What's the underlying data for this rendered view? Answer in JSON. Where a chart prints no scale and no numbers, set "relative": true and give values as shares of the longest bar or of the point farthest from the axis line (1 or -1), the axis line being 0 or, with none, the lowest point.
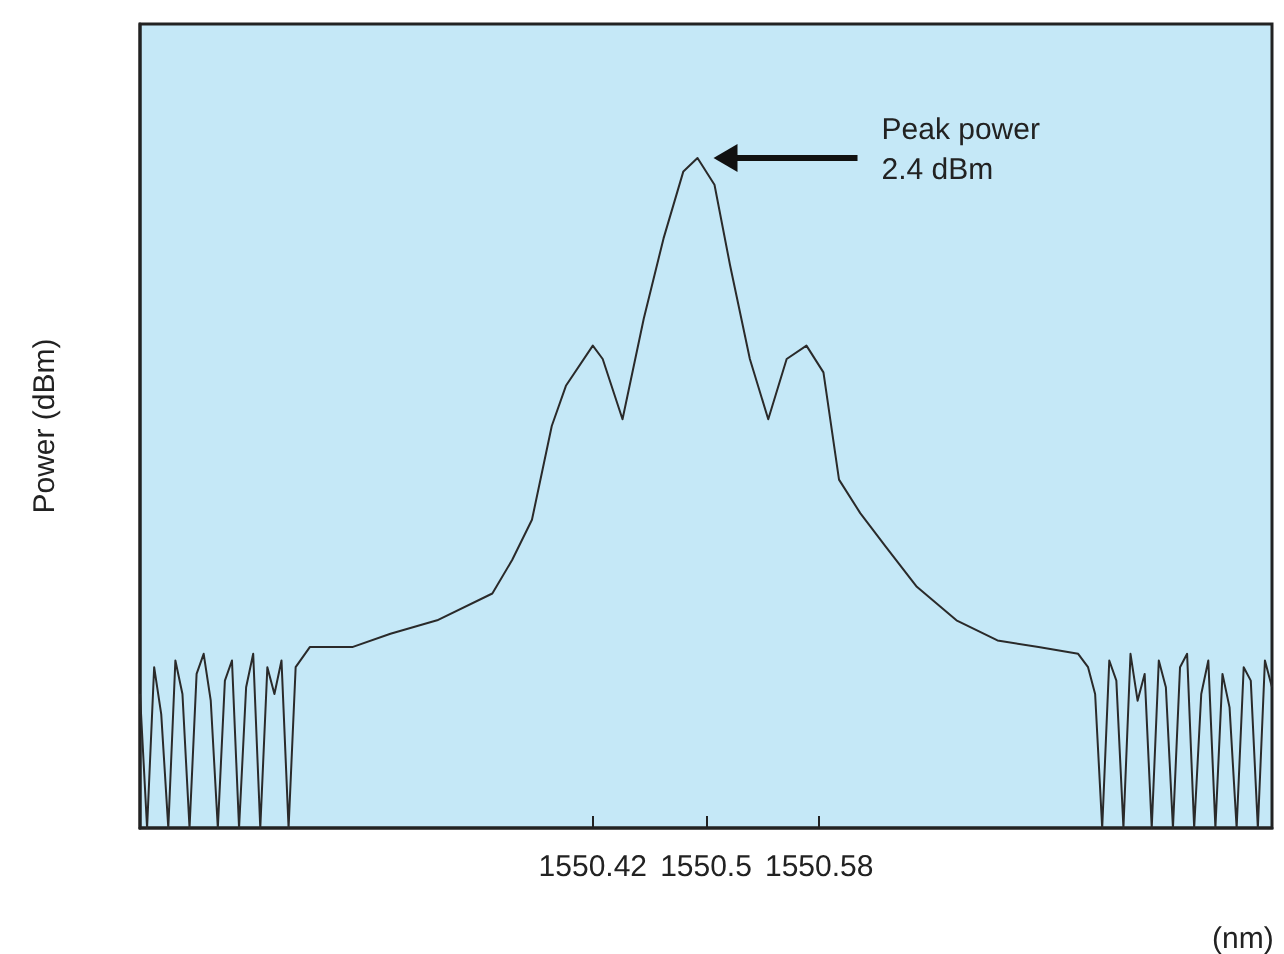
{
  "chart_data": {
    "type": "line",
    "relative": true,
    "xlabel": "(nm)",
    "ylabel": "Power (dBm)",
    "xlim": [
      1550.1,
      1550.9
    ],
    "xticks": [
      1550.42,
      1550.5,
      1550.58
    ],
    "grid": false,
    "marker": "none",
    "line_style": "solid",
    "annotations": [
      "Peak power\n2.4 dBm"
    ],
    "series": [
      {
        "color": "#2a2a2a",
        "x": [
          1550.1,
          1550.105,
          1550.11,
          1550.115,
          1550.12,
          1550.125,
          1550.13,
          1550.135,
          1550.14,
          1550.145,
          1550.15,
          1550.155,
          1550.16,
          1550.165,
          1550.17,
          1550.175,
          1550.18,
          1550.185,
          1550.19,
          1550.195,
          1550.2,
          1550.205,
          1550.21,
          1550.22,
          1550.25,
          1550.277,
          1550.31,
          1550.349,
          1550.363,
          1550.377,
          1550.391,
          1550.401,
          1550.42,
          1550.427,
          1550.441,
          1550.456,
          1550.47,
          1550.484,
          1550.494,
          1550.506,
          1550.517,
          1550.531,
          1550.544,
          1550.557,
          1550.571,
          1550.583,
          1550.594,
          1550.609,
          1550.627,
          1550.649,
          1550.677,
          1550.706,
          1550.735,
          1550.763,
          1550.77,
          1550.775,
          1550.78,
          1550.785,
          1550.79,
          1550.795,
          1550.8,
          1550.805,
          1550.81,
          1550.815,
          1550.82,
          1550.825,
          1550.83,
          1550.835,
          1550.84,
          1550.845,
          1550.85,
          1550.855,
          1550.86,
          1550.865,
          1550.87,
          1550.875,
          1550.88,
          1550.885,
          1550.89,
          1550.895,
          1550.9
        ],
        "values": [
          0.2,
          0.0,
          0.24,
          0.17,
          0.0,
          0.25,
          0.2,
          0.0,
          0.23,
          0.26,
          0.19,
          0.0,
          0.22,
          0.25,
          0.0,
          0.21,
          0.26,
          0.0,
          0.24,
          0.2,
          0.25,
          0.0,
          0.24,
          0.27,
          0.27,
          0.29,
          0.31,
          0.35,
          0.4,
          0.46,
          0.6,
          0.66,
          0.72,
          0.7,
          0.61,
          0.76,
          0.88,
          0.98,
          1,
          0.96,
          0.84,
          0.7,
          0.61,
          0.7,
          0.72,
          0.68,
          0.52,
          0.47,
          0.42,
          0.36,
          0.31,
          0.28,
          0.27,
          0.26,
          0.24,
          0.2,
          0.0,
          0.25,
          0.22,
          0.0,
          0.26,
          0.19,
          0.23,
          0.0,
          0.25,
          0.21,
          0.0,
          0.24,
          0.26,
          0.0,
          0.2,
          0.25,
          0.0,
          0.23,
          0.18,
          0.0,
          0.24,
          0.22,
          0.0,
          0.25,
          0.21
        ]
      }
    ]
  }
}
